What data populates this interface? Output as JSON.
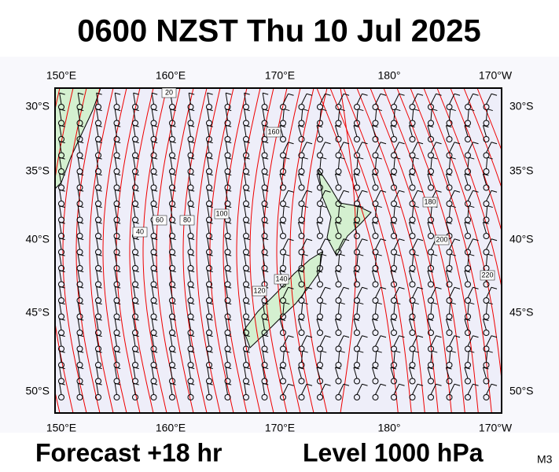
{
  "title": "0600 NZST Thu 10 Jul 2025",
  "map": {
    "lon_labels": [
      "150°E",
      "160°E",
      "170°E",
      "180°",
      "170°W"
    ],
    "lat_labels": [
      "30°S",
      "35°S",
      "40°S",
      "45°S",
      "50°S"
    ],
    "contour_labels": [
      "20",
      "40",
      "60",
      "80",
      "100",
      "120",
      "140",
      "160",
      "180",
      "200",
      "220"
    ]
  },
  "footer": {
    "forecast": "Forecast +18 hr",
    "level": "Level 1000 hPa",
    "model": "M3"
  }
}
